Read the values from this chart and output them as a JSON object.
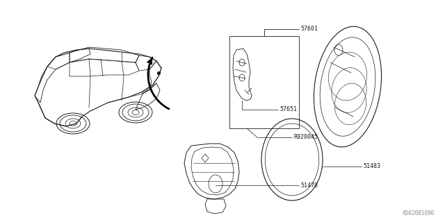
{
  "bg_color": "#ffffff",
  "line_color": "#1a1a1a",
  "text_color": "#1a1a1a",
  "watermark": "A562001090",
  "fig_width": 6.4,
  "fig_height": 3.2,
  "dpi": 100
}
